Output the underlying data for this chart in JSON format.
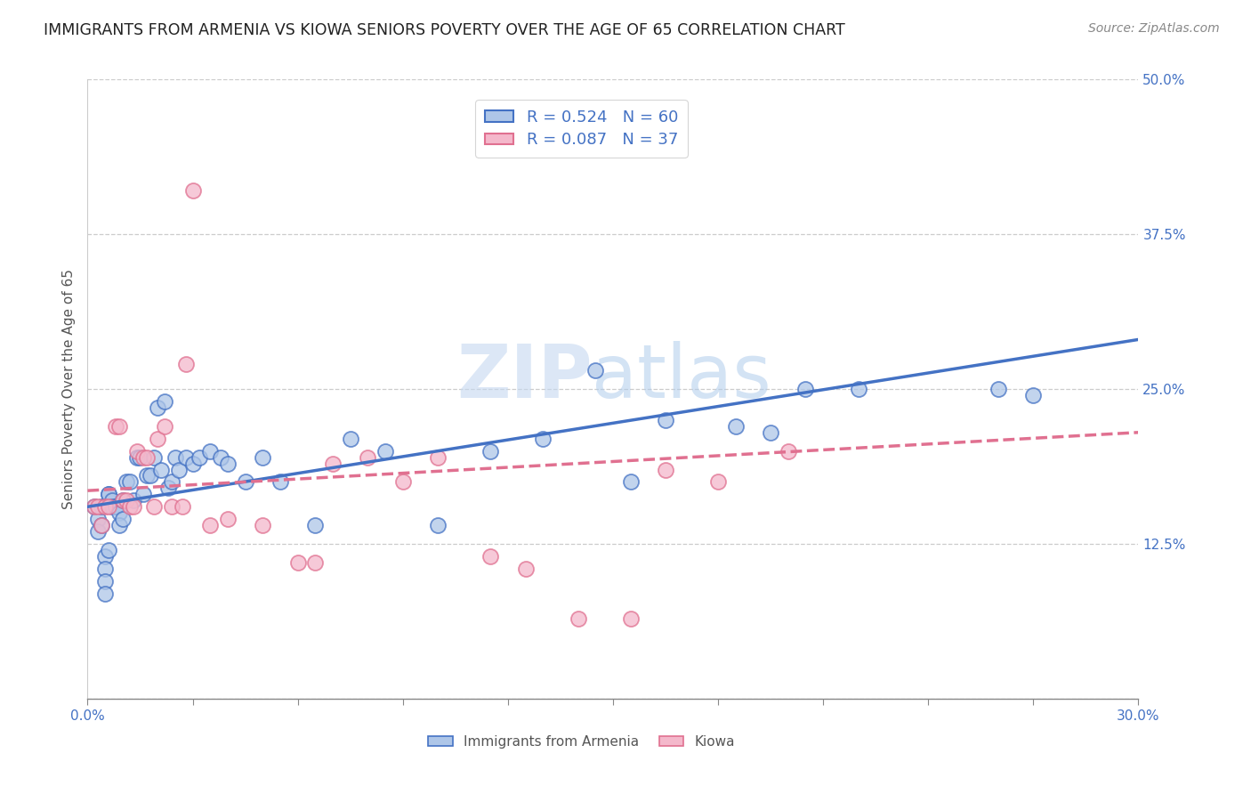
{
  "title": "IMMIGRANTS FROM ARMENIA VS KIOWA SENIORS POVERTY OVER THE AGE OF 65 CORRELATION CHART",
  "source": "Source: ZipAtlas.com",
  "ylabel": "Seniors Poverty Over the Age of 65",
  "x_tick_labels": [
    "0.0%",
    "",
    "",
    "",
    "",
    "",
    "",
    "",
    "",
    "30.0%"
  ],
  "y_ticks": [
    0.0,
    0.125,
    0.25,
    0.375,
    0.5
  ],
  "y_tick_labels": [
    "",
    "12.5%",
    "25.0%",
    "37.5%",
    "50.0%"
  ],
  "xlim": [
    0.0,
    0.3
  ],
  "ylim": [
    0.0,
    0.5
  ],
  "legend_R1": "R = 0.524",
  "legend_N1": "N = 60",
  "legend_R2": "R = 0.087",
  "legend_N2": "N = 37",
  "color_armenia_fill": "#aec6e8",
  "color_armenia_edge": "#4472C4",
  "color_kiowa_fill": "#f4b8cb",
  "color_kiowa_edge": "#e07090",
  "color_text_blue": "#4472C4",
  "color_line_armenia": "#4472C4",
  "color_line_kiowa": "#e07090",
  "watermark_text": "ZIPatlas",
  "armenia_scatter_x": [
    0.002,
    0.003,
    0.003,
    0.004,
    0.004,
    0.005,
    0.005,
    0.005,
    0.005,
    0.006,
    0.006,
    0.006,
    0.007,
    0.007,
    0.008,
    0.008,
    0.009,
    0.009,
    0.01,
    0.01,
    0.011,
    0.012,
    0.013,
    0.014,
    0.015,
    0.016,
    0.017,
    0.018,
    0.019,
    0.02,
    0.021,
    0.022,
    0.023,
    0.024,
    0.025,
    0.026,
    0.028,
    0.03,
    0.032,
    0.035,
    0.038,
    0.04,
    0.045,
    0.05,
    0.055,
    0.065,
    0.075,
    0.085,
    0.1,
    0.115,
    0.13,
    0.145,
    0.155,
    0.165,
    0.185,
    0.195,
    0.205,
    0.22,
    0.26,
    0.27
  ],
  "armenia_scatter_y": [
    0.155,
    0.145,
    0.135,
    0.14,
    0.155,
    0.115,
    0.105,
    0.095,
    0.085,
    0.165,
    0.165,
    0.12,
    0.16,
    0.155,
    0.155,
    0.155,
    0.15,
    0.14,
    0.16,
    0.145,
    0.175,
    0.175,
    0.16,
    0.195,
    0.195,
    0.165,
    0.18,
    0.18,
    0.195,
    0.235,
    0.185,
    0.24,
    0.17,
    0.175,
    0.195,
    0.185,
    0.195,
    0.19,
    0.195,
    0.2,
    0.195,
    0.19,
    0.175,
    0.195,
    0.175,
    0.14,
    0.21,
    0.2,
    0.14,
    0.2,
    0.21,
    0.265,
    0.175,
    0.225,
    0.22,
    0.215,
    0.25,
    0.25,
    0.25,
    0.245
  ],
  "kiowa_scatter_x": [
    0.002,
    0.003,
    0.004,
    0.005,
    0.006,
    0.008,
    0.009,
    0.01,
    0.011,
    0.012,
    0.013,
    0.014,
    0.016,
    0.017,
    0.019,
    0.02,
    0.022,
    0.024,
    0.027,
    0.028,
    0.03,
    0.035,
    0.04,
    0.05,
    0.06,
    0.065,
    0.07,
    0.08,
    0.09,
    0.1,
    0.115,
    0.125,
    0.14,
    0.155,
    0.165,
    0.18,
    0.2
  ],
  "kiowa_scatter_y": [
    0.155,
    0.155,
    0.14,
    0.155,
    0.155,
    0.22,
    0.22,
    0.16,
    0.16,
    0.155,
    0.155,
    0.2,
    0.195,
    0.195,
    0.155,
    0.21,
    0.22,
    0.155,
    0.155,
    0.27,
    0.41,
    0.14,
    0.145,
    0.14,
    0.11,
    0.11,
    0.19,
    0.195,
    0.175,
    0.195,
    0.115,
    0.105,
    0.065,
    0.065,
    0.185,
    0.175,
    0.2
  ],
  "armenia_trend_x": [
    0.0,
    0.3
  ],
  "armenia_trend_y": [
    0.155,
    0.29
  ],
  "kiowa_trend_x": [
    0.0,
    0.3
  ],
  "kiowa_trend_y": [
    0.168,
    0.215
  ],
  "background_color": "#ffffff",
  "grid_color": "#cccccc",
  "title_fontsize": 12.5,
  "source_fontsize": 10,
  "label_fontsize": 11,
  "tick_fontsize": 11,
  "legend_fontsize": 13
}
